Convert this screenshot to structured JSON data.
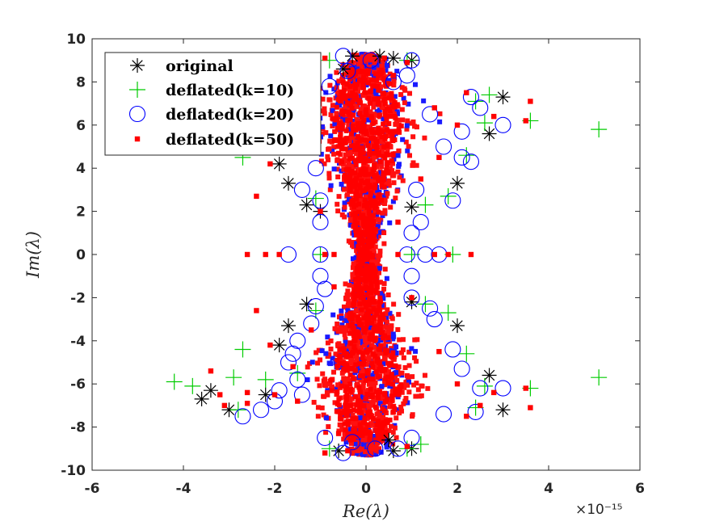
{
  "chart_data": {
    "type": "scatter",
    "title": "",
    "xlabel": "Re(λ)",
    "ylabel": "Im(λ)",
    "x_exponent": "×10⁻¹⁵",
    "xlim": [
      -6,
      6
    ],
    "ylim": [
      -10,
      10
    ],
    "xticks": [
      -6,
      -4,
      -2,
      0,
      2,
      4,
      6
    ],
    "yticks": [
      -10,
      -8,
      -6,
      -4,
      -2,
      0,
      2,
      4,
      6,
      8,
      10
    ],
    "xtick_labels": [
      "-6",
      "-4",
      "-2",
      "0",
      "2",
      "4",
      "6"
    ],
    "ytick_labels": [
      "-10",
      "-8",
      "-6",
      "-4",
      "-2",
      "0",
      "2",
      "4",
      "6",
      "8",
      "10"
    ],
    "legend_position": "top-left",
    "colors": {
      "original": "#000000",
      "k10": "#00cc00",
      "k20": "#0000ff",
      "k50": "#ff0000"
    },
    "series": [
      {
        "name": "original",
        "marker": "asterisk",
        "color": "#000000",
        "points": [
          [
            3.0,
            7.3
          ],
          [
            2.7,
            5.6
          ],
          [
            2.0,
            3.3
          ],
          [
            1.0,
            2.2
          ],
          [
            -1.9,
            4.2
          ],
          [
            -1.7,
            3.3
          ],
          [
            -1.3,
            2.3
          ],
          [
            -1.0,
            2.0
          ],
          [
            1.0,
            -2.2
          ],
          [
            2.0,
            -3.3
          ],
          [
            -1.9,
            -4.2
          ],
          [
            -1.7,
            -3.3
          ],
          [
            -1.3,
            -2.3
          ],
          [
            -3.6,
            -6.7
          ],
          [
            -3.4,
            -6.3
          ],
          [
            -3.0,
            -7.2
          ],
          [
            -2.2,
            -6.5
          ],
          [
            3.0,
            -7.2
          ],
          [
            2.7,
            -5.6
          ],
          [
            -0.3,
            9.2
          ],
          [
            0.3,
            9.2
          ],
          [
            0.6,
            9.1
          ],
          [
            -0.6,
            -9.1
          ],
          [
            0.6,
            -9.1
          ],
          [
            1.0,
            9.0
          ],
          [
            1.0,
            -9.0
          ],
          [
            -0.5,
            8.6
          ],
          [
            0.5,
            -8.6
          ]
        ]
      },
      {
        "name": "deflated(k=10)",
        "marker": "plus",
        "color": "#00cc00",
        "points": [
          [
            5.1,
            5.8
          ],
          [
            5.1,
            -5.7
          ],
          [
            3.6,
            6.2
          ],
          [
            3.6,
            -6.2
          ],
          [
            -4.2,
            -5.9
          ],
          [
            -3.8,
            -6.1
          ],
          [
            -2.7,
            4.5
          ],
          [
            -2.7,
            -4.4
          ],
          [
            -2.9,
            -5.7
          ],
          [
            -2.8,
            -7.2
          ],
          [
            1.8,
            2.7
          ],
          [
            1.8,
            -2.7
          ],
          [
            2.7,
            7.4
          ],
          [
            2.6,
            6.1
          ],
          [
            2.6,
            -6.1
          ],
          [
            1.9,
            0.0
          ],
          [
            1.0,
            0.0
          ],
          [
            -1.0,
            0.0
          ],
          [
            -1.2,
            8.8
          ],
          [
            1.2,
            -8.8
          ],
          [
            -0.8,
            9.0
          ],
          [
            0.9,
            9.0
          ],
          [
            -0.8,
            -9.0
          ],
          [
            0.9,
            -9.0
          ],
          [
            2.2,
            4.6
          ],
          [
            2.2,
            -4.6
          ],
          [
            -1.5,
            5.5
          ],
          [
            -1.5,
            -5.5
          ],
          [
            -2.2,
            5.8
          ],
          [
            -2.2,
            -5.8
          ],
          [
            1.3,
            2.3
          ],
          [
            1.3,
            -2.3
          ],
          [
            -1.1,
            2.6
          ],
          [
            -1.1,
            -2.6
          ],
          [
            2.4,
            7.1
          ],
          [
            2.4,
            -7.1
          ]
        ]
      },
      {
        "name": "deflated(k=20)",
        "marker": "circle",
        "color": "#0000ff",
        "points": [
          [
            -1.7,
            0.0
          ],
          [
            -1.0,
            0.0
          ],
          [
            1.3,
            0.0
          ],
          [
            1.6,
            0.0
          ],
          [
            0.9,
            0.0
          ],
          [
            3.0,
            6.0
          ],
          [
            2.5,
            6.8
          ],
          [
            2.3,
            7.3
          ],
          [
            2.1,
            5.7
          ],
          [
            2.1,
            4.5
          ],
          [
            1.1,
            3.0
          ],
          [
            1.2,
            1.5
          ],
          [
            1.0,
            1.0
          ],
          [
            0.9,
            8.3
          ],
          [
            0.6,
            8.0
          ],
          [
            1.0,
            9.0
          ],
          [
            -0.5,
            9.2
          ],
          [
            -1.3,
            6.4
          ],
          [
            -1.3,
            5.0
          ],
          [
            -1.0,
            2.5
          ],
          [
            -1.0,
            1.5
          ],
          [
            -1.4,
            3.0
          ],
          [
            -1.1,
            4.0
          ],
          [
            1.9,
            2.5
          ],
          [
            2.3,
            4.3
          ],
          [
            -2.7,
            -7.5
          ],
          [
            -2.3,
            -7.2
          ],
          [
            -2.0,
            -6.8
          ],
          [
            -1.9,
            -6.3
          ],
          [
            -1.5,
            -5.8
          ],
          [
            -1.6,
            -4.6
          ],
          [
            -1.5,
            -4.0
          ],
          [
            -1.2,
            -3.2
          ],
          [
            -1.1,
            -2.4
          ],
          [
            -0.9,
            -1.6
          ],
          [
            -1.0,
            -1.0
          ],
          [
            1.0,
            -1.0
          ],
          [
            1.0,
            -2.0
          ],
          [
            1.4,
            -2.5
          ],
          [
            1.5,
            -3.0
          ],
          [
            1.9,
            -4.4
          ],
          [
            2.1,
            -5.3
          ],
          [
            2.5,
            -6.2
          ],
          [
            3.0,
            -6.2
          ],
          [
            2.4,
            -7.3
          ],
          [
            1.7,
            -7.4
          ],
          [
            1.0,
            -8.5
          ],
          [
            0.7,
            -9.0
          ],
          [
            -0.5,
            -9.2
          ],
          [
            -0.9,
            -8.5
          ],
          [
            -0.4,
            8.5
          ],
          [
            -0.8,
            7.8
          ],
          [
            0.1,
            9.0
          ],
          [
            0.2,
            -9.0
          ],
          [
            -0.3,
            -8.7
          ],
          [
            1.4,
            6.5
          ],
          [
            -1.4,
            -6.5
          ],
          [
            1.7,
            5.0
          ],
          [
            -1.7,
            -5.0
          ]
        ]
      },
      {
        "name": "deflated(k=50)",
        "marker": "square",
        "color": "#ff0000",
        "points": [
          [
            3.6,
            7.1
          ],
          [
            3.6,
            -7.1
          ],
          [
            3.5,
            6.2
          ],
          [
            3.5,
            -6.2
          ],
          [
            -3.2,
            -6.5
          ],
          [
            -3.1,
            -7.0
          ],
          [
            -3.4,
            -5.4
          ],
          [
            -2.6,
            -6.4
          ],
          [
            -2.4,
            2.7
          ],
          [
            -2.4,
            -2.6
          ],
          [
            -2.6,
            0.0
          ],
          [
            -2.2,
            0.0
          ],
          [
            -1.9,
            0.0
          ],
          [
            -0.9,
            0.0
          ],
          [
            -0.7,
            0.0
          ],
          [
            0.7,
            0.0
          ],
          [
            1.5,
            0.0
          ],
          [
            1.8,
            0.0
          ],
          [
            2.3,
            0.0
          ],
          [
            -0.9,
            9.1
          ],
          [
            -0.9,
            -9.2
          ],
          [
            0.9,
            8.9
          ],
          [
            0.9,
            -8.9
          ],
          [
            2.8,
            6.4
          ],
          [
            2.8,
            -6.4
          ],
          [
            2.0,
            6.0
          ],
          [
            2.0,
            -6.0
          ],
          [
            -2.1,
            4.2
          ],
          [
            -2.1,
            -4.2
          ],
          [
            1.6,
            4.5
          ],
          [
            1.6,
            -4.5
          ],
          [
            -1.6,
            5.2
          ],
          [
            -1.6,
            -5.2
          ],
          [
            2.2,
            7.5
          ],
          [
            2.2,
            -7.5
          ],
          [
            -2.6,
            -6.9
          ],
          [
            -2.0,
            -6.5
          ],
          [
            2.5,
            -7.0
          ],
          [
            1.5,
            6.8
          ],
          [
            -1.5,
            -6.8
          ],
          [
            1.2,
            3.5
          ],
          [
            -1.2,
            -3.5
          ],
          [
            -1.0,
            2.0
          ],
          [
            1.0,
            -2.0
          ],
          [
            0.7,
            1.5
          ],
          [
            -0.7,
            -1.5
          ],
          [
            0.6,
            8.3
          ],
          [
            -0.6,
            -8.3
          ],
          [
            0.4,
            9.1
          ],
          [
            -0.4,
            -9.1
          ]
        ]
      }
    ]
  }
}
